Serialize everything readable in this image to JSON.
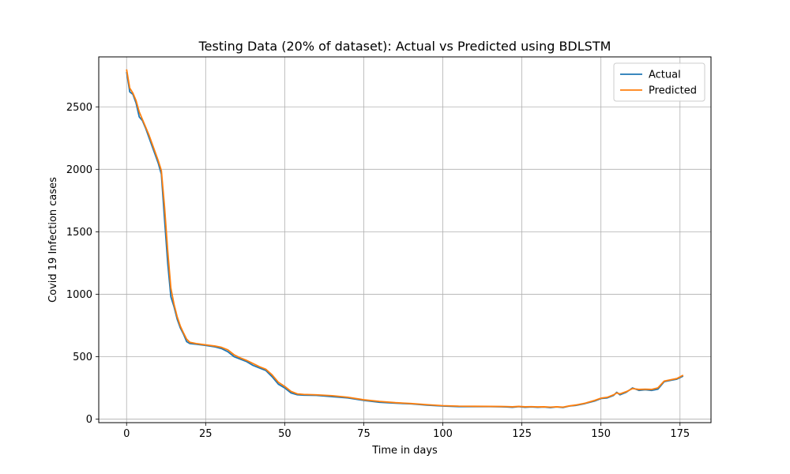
{
  "chart_data": {
    "type": "line",
    "title": "Testing Data (20% of dataset): Actual vs Predicted using BDLSTM",
    "xlabel": "Time in days",
    "ylabel": "Covid 19 Infection cases",
    "xlim": [
      -8.8,
      184.8
    ],
    "ylim": [
      -28,
      2900
    ],
    "xticks": [
      0,
      25,
      50,
      75,
      100,
      125,
      150,
      175
    ],
    "yticks": [
      0,
      500,
      1000,
      1500,
      2000,
      2500
    ],
    "grid": true,
    "legend": "top-right",
    "series": [
      {
        "name": "Actual",
        "color": "#1f77b4",
        "points": [
          [
            0,
            2780
          ],
          [
            1,
            2620
          ],
          [
            2,
            2600
          ],
          [
            3,
            2530
          ],
          [
            4,
            2420
          ],
          [
            5,
            2390
          ],
          [
            6,
            2330
          ],
          [
            7,
            2260
          ],
          [
            8,
            2190
          ],
          [
            9,
            2120
          ],
          [
            10,
            2050
          ],
          [
            11,
            1960
          ],
          [
            12,
            1600
          ],
          [
            13,
            1250
          ],
          [
            14,
            980
          ],
          [
            15,
            900
          ],
          [
            16,
            800
          ],
          [
            17,
            730
          ],
          [
            18,
            680
          ],
          [
            19,
            620
          ],
          [
            20,
            605
          ],
          [
            22,
            600
          ],
          [
            25,
            590
          ],
          [
            28,
            578
          ],
          [
            30,
            565
          ],
          [
            32,
            540
          ],
          [
            34,
            500
          ],
          [
            36,
            480
          ],
          [
            38,
            460
          ],
          [
            40,
            430
          ],
          [
            42,
            410
          ],
          [
            44,
            390
          ],
          [
            46,
            340
          ],
          [
            48,
            280
          ],
          [
            50,
            250
          ],
          [
            52,
            210
          ],
          [
            54,
            195
          ],
          [
            56,
            192
          ],
          [
            60,
            190
          ],
          [
            65,
            180
          ],
          [
            70,
            170
          ],
          [
            75,
            150
          ],
          [
            80,
            135
          ],
          [
            85,
            128
          ],
          [
            90,
            122
          ],
          [
            95,
            112
          ],
          [
            100,
            105
          ],
          [
            105,
            100
          ],
          [
            110,
            100
          ],
          [
            115,
            100
          ],
          [
            120,
            98
          ],
          [
            122,
            95
          ],
          [
            124,
            100
          ],
          [
            126,
            95
          ],
          [
            128,
            98
          ],
          [
            130,
            95
          ],
          [
            132,
            97
          ],
          [
            134,
            92
          ],
          [
            136,
            98
          ],
          [
            138,
            93
          ],
          [
            140,
            105
          ],
          [
            142,
            110
          ],
          [
            145,
            125
          ],
          [
            148,
            145
          ],
          [
            150,
            165
          ],
          [
            152,
            170
          ],
          [
            154,
            190
          ],
          [
            155,
            215
          ],
          [
            156,
            195
          ],
          [
            158,
            215
          ],
          [
            160,
            250
          ],
          [
            162,
            230
          ],
          [
            164,
            235
          ],
          [
            166,
            230
          ],
          [
            168,
            240
          ],
          [
            170,
            300
          ],
          [
            172,
            310
          ],
          [
            174,
            320
          ],
          [
            176,
            345
          ]
        ]
      },
      {
        "name": "Predicted",
        "color": "#ff7f0e",
        "points": [
          [
            0,
            2800
          ],
          [
            1,
            2650
          ],
          [
            2,
            2610
          ],
          [
            3,
            2550
          ],
          [
            4,
            2460
          ],
          [
            5,
            2400
          ],
          [
            6,
            2340
          ],
          [
            7,
            2280
          ],
          [
            8,
            2210
          ],
          [
            9,
            2140
          ],
          [
            10,
            2070
          ],
          [
            11,
            1990
          ],
          [
            12,
            1700
          ],
          [
            13,
            1350
          ],
          [
            14,
            1050
          ],
          [
            15,
            920
          ],
          [
            16,
            820
          ],
          [
            17,
            745
          ],
          [
            18,
            690
          ],
          [
            19,
            640
          ],
          [
            20,
            615
          ],
          [
            22,
            605
          ],
          [
            25,
            595
          ],
          [
            28,
            585
          ],
          [
            30,
            575
          ],
          [
            32,
            555
          ],
          [
            34,
            515
          ],
          [
            36,
            490
          ],
          [
            38,
            470
          ],
          [
            40,
            445
          ],
          [
            42,
            420
          ],
          [
            44,
            400
          ],
          [
            46,
            355
          ],
          [
            48,
            295
          ],
          [
            50,
            262
          ],
          [
            52,
            222
          ],
          [
            54,
            202
          ],
          [
            56,
            198
          ],
          [
            60,
            195
          ],
          [
            65,
            188
          ],
          [
            70,
            175
          ],
          [
            75,
            155
          ],
          [
            80,
            142
          ],
          [
            85,
            132
          ],
          [
            90,
            125
          ],
          [
            95,
            116
          ],
          [
            100,
            108
          ],
          [
            105,
            104
          ],
          [
            110,
            103
          ],
          [
            115,
            102
          ],
          [
            120,
            101
          ],
          [
            122,
            99
          ],
          [
            124,
            102
          ],
          [
            126,
            99
          ],
          [
            128,
            100
          ],
          [
            130,
            98
          ],
          [
            132,
            99
          ],
          [
            134,
            96
          ],
          [
            136,
            99
          ],
          [
            138,
            96
          ],
          [
            140,
            106
          ],
          [
            142,
            113
          ],
          [
            145,
            128
          ],
          [
            148,
            150
          ],
          [
            150,
            168
          ],
          [
            152,
            175
          ],
          [
            154,
            195
          ],
          [
            155,
            210
          ],
          [
            156,
            202
          ],
          [
            158,
            220
          ],
          [
            160,
            245
          ],
          [
            162,
            238
          ],
          [
            164,
            240
          ],
          [
            166,
            238
          ],
          [
            168,
            250
          ],
          [
            170,
            305
          ],
          [
            172,
            315
          ],
          [
            174,
            325
          ],
          [
            176,
            352
          ]
        ]
      }
    ]
  }
}
